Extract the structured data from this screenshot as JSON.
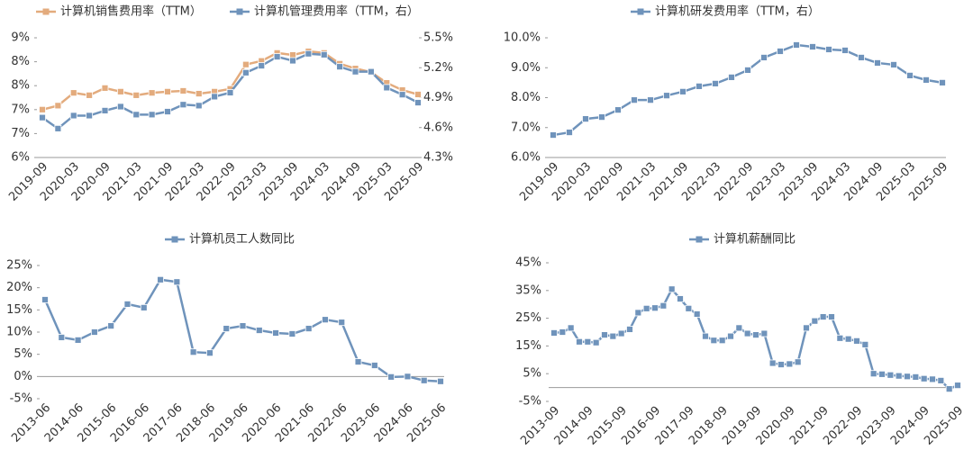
{
  "chart_data": [
    {
      "type": "line",
      "categories": [
        "2019-09",
        null,
        "2020-03",
        null,
        "2020-09",
        null,
        "2021-03",
        null,
        "2021-09",
        null,
        "2022-03",
        null,
        "2022-09",
        null,
        "2023-03",
        null,
        "2023-09",
        null,
        "2024-03",
        null,
        "2024-09",
        null,
        "2025-03",
        null,
        "2025-09"
      ],
      "series": [
        {
          "name": "计算机销售费用率（TTM）",
          "color": "#e3ab7d",
          "values": [
            7.2,
            7.3,
            7.62,
            7.56,
            7.74,
            7.65,
            7.56,
            7.62,
            7.65,
            7.67,
            7.6,
            7.65,
            7.72,
            8.33,
            8.42,
            8.62,
            8.57,
            8.66,
            8.62,
            8.35,
            8.23,
            8.14,
            7.87,
            7.69,
            7.58
          ]
        },
        {
          "name": "计算机管理费用率（TTM，右）",
          "color": "#6f93bb",
          "axis": "y2",
          "values": [
            4.7,
            4.59,
            4.72,
            4.72,
            4.77,
            4.81,
            4.73,
            4.73,
            4.76,
            4.83,
            4.82,
            4.91,
            4.95,
            5.15,
            5.22,
            5.31,
            5.27,
            5.34,
            5.33,
            5.21,
            5.16,
            5.16,
            5.0,
            4.93,
            4.85
          ]
        }
      ],
      "ylim": [
        6,
        9
      ],
      "yticks": [
        {
          "value": 6,
          "label": "6%"
        },
        {
          "value": 6.6,
          "label": "7%"
        },
        {
          "value": 7.2,
          "label": "7%"
        },
        {
          "value": 7.8,
          "label": "8%"
        },
        {
          "value": 8.4,
          "label": "8%"
        },
        {
          "value": 9,
          "label": "9%"
        }
      ],
      "y2lim": [
        4.3,
        5.5
      ],
      "y2ticks": [
        {
          "value": 4.3,
          "label": "4.3%"
        },
        {
          "value": 4.6,
          "label": "4.6%"
        },
        {
          "value": 4.9,
          "label": "4.9%"
        },
        {
          "value": 5.2,
          "label": "5.2%"
        },
        {
          "value": 5.5,
          "label": "5.5%"
        }
      ],
      "legend": "top"
    },
    {
      "type": "line",
      "categories": [
        "2019-09",
        null,
        "2020-03",
        null,
        "2020-09",
        null,
        "2021-03",
        null,
        "2021-09",
        null,
        "2022-03",
        null,
        "2022-09",
        null,
        "2023-03",
        null,
        "2023-09",
        null,
        "2024-03",
        null,
        "2024-09",
        null,
        "2025-03",
        null,
        "2025-09"
      ],
      "series": [
        {
          "name": "计算机研发费用率（TTM，右）",
          "color": "#6f93bb",
          "values": [
            6.75,
            6.84,
            7.29,
            7.35,
            7.59,
            7.92,
            7.92,
            8.07,
            8.2,
            8.38,
            8.47,
            8.68,
            8.92,
            9.34,
            9.55,
            9.76,
            9.7,
            9.61,
            9.58,
            9.34,
            9.16,
            9.1,
            8.74,
            8.59,
            8.5
          ]
        }
      ],
      "ylim": [
        6,
        10
      ],
      "yticks": [
        {
          "value": 6,
          "label": "6.0%"
        },
        {
          "value": 7,
          "label": "7.0%"
        },
        {
          "value": 8,
          "label": "8.0%"
        },
        {
          "value": 9,
          "label": "9.0%"
        },
        {
          "value": 10,
          "label": "10.0%"
        }
      ],
      "legend": "top"
    },
    {
      "type": "line",
      "categories": [
        "2013-06",
        null,
        "2014-06",
        null,
        "2015-06",
        null,
        "2016-06",
        null,
        "2017-06",
        null,
        "2018-06",
        null,
        "2019-06",
        null,
        "2020-06",
        null,
        "2021-06",
        null,
        "2022-06",
        null,
        "2023-06",
        null,
        "2024-06",
        null,
        "2025-06"
      ],
      "series": [
        {
          "name": "计算机员工人数同比",
          "color": "#6f93bb",
          "values": [
            17.3,
            8.8,
            8.2,
            10.0,
            11.4,
            16.3,
            15.5,
            21.8,
            21.3,
            5.5,
            5.3,
            10.8,
            11.4,
            10.4,
            9.8,
            9.6,
            10.8,
            12.8,
            12.2,
            3.3,
            2.5,
            -0.1,
            0.0,
            -0.9,
            -1.1
          ]
        }
      ],
      "ylim": [
        -5,
        25
      ],
      "yticks": [
        {
          "value": -5,
          "label": "-5%"
        },
        {
          "value": 0,
          "label": "0%"
        },
        {
          "value": 5,
          "label": "5%"
        },
        {
          "value": 10,
          "label": "10%"
        },
        {
          "value": 15,
          "label": "15%"
        },
        {
          "value": 20,
          "label": "20%"
        },
        {
          "value": 25,
          "label": "25%"
        }
      ],
      "legend": "top"
    },
    {
      "type": "line",
      "categories": [
        "2013-09",
        null,
        null,
        null,
        "2014-09",
        null,
        null,
        null,
        "2015-09",
        null,
        null,
        null,
        "2016-09",
        null,
        null,
        null,
        "2017-09",
        null,
        null,
        null,
        "2018-09",
        null,
        null,
        null,
        "2019-09",
        null,
        null,
        null,
        "2020-09",
        null,
        null,
        null,
        "2021-09",
        null,
        null,
        null,
        "2022-09",
        null,
        null,
        null,
        "2023-09",
        null,
        null,
        null,
        "2024-09",
        null,
        null,
        null,
        "2025-09"
      ],
      "series": [
        {
          "name": "计算机薪酬同比",
          "color": "#6f93bb",
          "values": [
            19.7,
            20,
            21.5,
            16.5,
            16.5,
            16.2,
            19,
            18.5,
            19.5,
            21,
            27,
            28.5,
            28.7,
            29.5,
            35.5,
            32,
            28.5,
            26.5,
            18.5,
            17,
            17,
            18.5,
            21.5,
            19.5,
            19,
            19.5,
            8.8,
            8.3,
            8.5,
            9.2,
            21.5,
            24,
            25.5,
            25.5,
            17.8,
            17.5,
            16.8,
            15.5,
            5,
            4.8,
            4.5,
            4.2,
            4.0,
            3.8,
            3.2,
            3.0,
            2.5,
            -0.5,
            0.8
          ]
        }
      ],
      "ylim": [
        -5,
        45
      ],
      "yticks": [
        {
          "value": -5,
          "label": "-5%"
        },
        {
          "value": 5,
          "label": "5%"
        },
        {
          "value": 15,
          "label": "15%"
        },
        {
          "value": 25,
          "label": "25%"
        },
        {
          "value": 35,
          "label": "35%"
        },
        {
          "value": 45,
          "label": "45%"
        }
      ],
      "legend": "top"
    }
  ]
}
